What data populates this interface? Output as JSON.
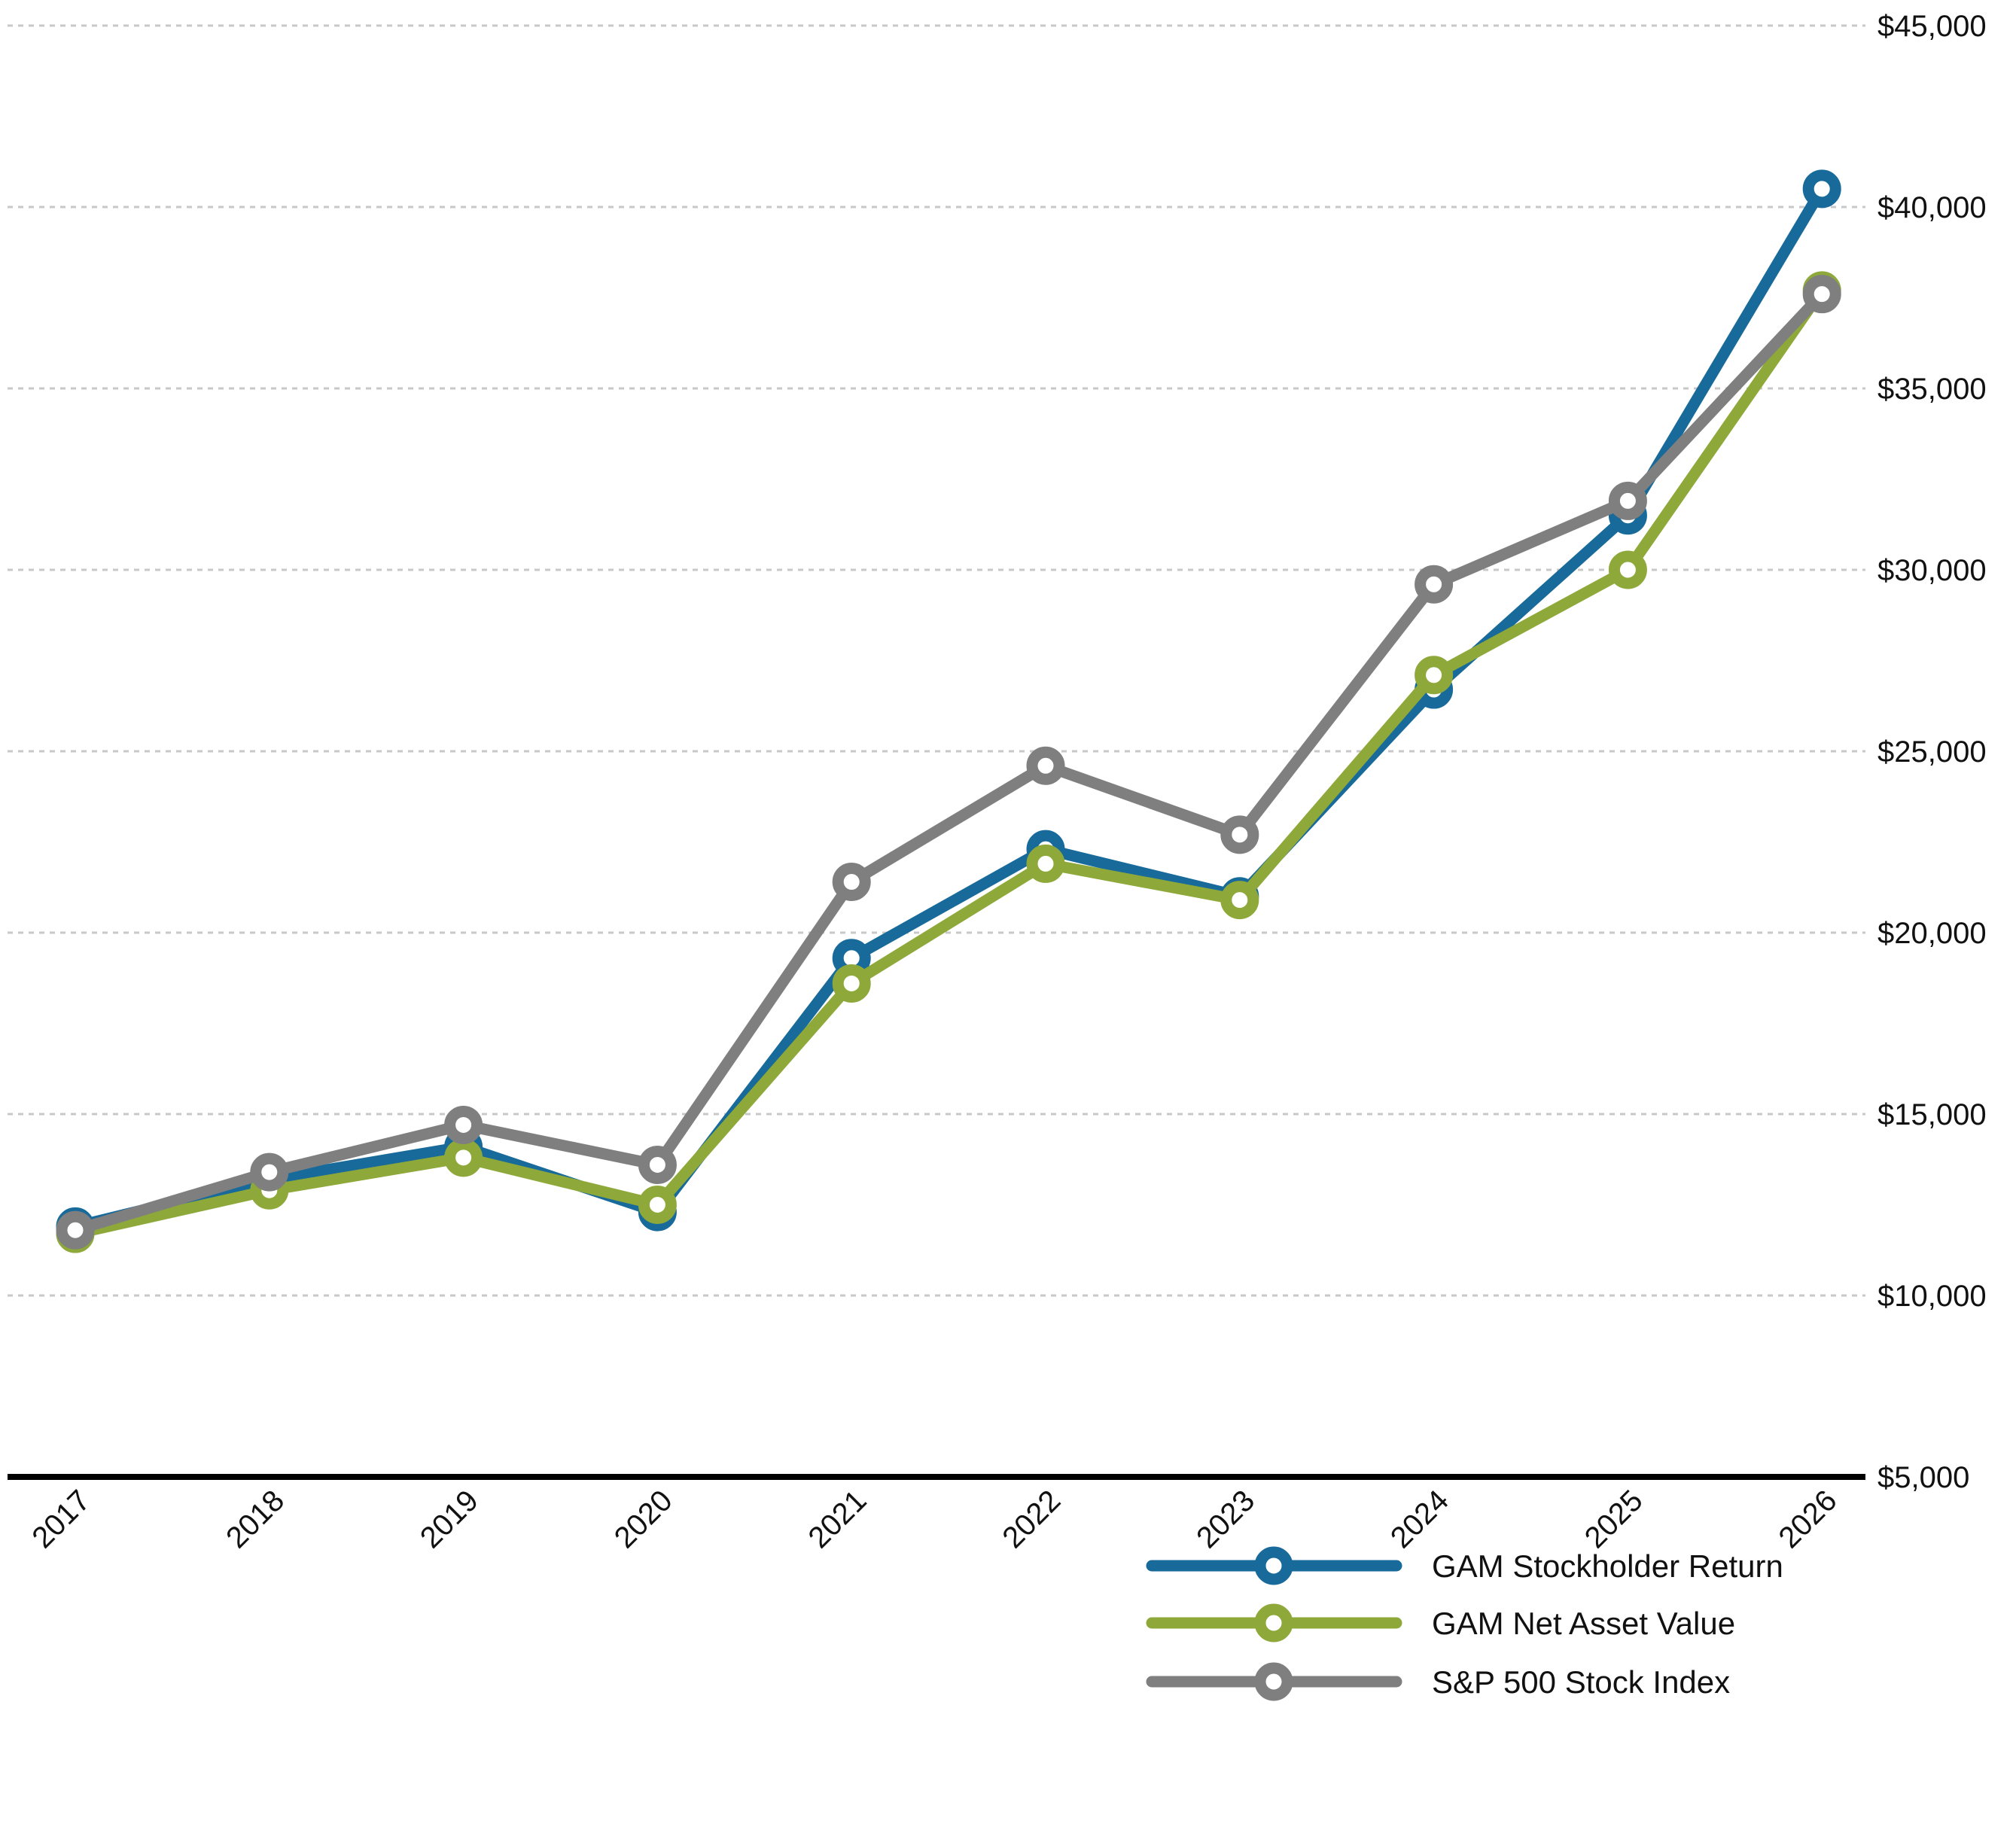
{
  "chart_data": {
    "type": "line",
    "title": "",
    "xlabel": "",
    "ylabel": "",
    "x": [
      "2017",
      "2018",
      "2019",
      "2020",
      "2021",
      "2022",
      "2023",
      "2024",
      "2025",
      "2026"
    ],
    "ylim": [
      5000,
      45000
    ],
    "yticks": [
      5000,
      10000,
      15000,
      20000,
      25000,
      30000,
      35000,
      40000,
      45000
    ],
    "ytick_labels": [
      "$5,000",
      "$10,000",
      "$15,000",
      "$20,000",
      "$25,000",
      "$30,000",
      "$35,000",
      "$40,000",
      "$45,000"
    ],
    "y_axis_side": "right",
    "grid": "horizontal dashed",
    "legend_position": "bottom-right",
    "series": [
      {
        "name": "GAM Stockholder Return",
        "color": "#176a9a",
        "values": [
          11900,
          13200,
          14100,
          12300,
          19300,
          22300,
          21000,
          26700,
          31500,
          40500
        ]
      },
      {
        "name": "GAM Net Asset Value",
        "color": "#8ea93a",
        "values": [
          11700,
          12900,
          13800,
          12500,
          18600,
          21900,
          20900,
          27100,
          30000,
          37700
        ]
      },
      {
        "name": "S&P 500 Stock Index",
        "color": "#7f7f7f",
        "values": [
          11800,
          13400,
          14700,
          13600,
          21400,
          24600,
          22700,
          29600,
          31900,
          37600
        ]
      }
    ]
  }
}
